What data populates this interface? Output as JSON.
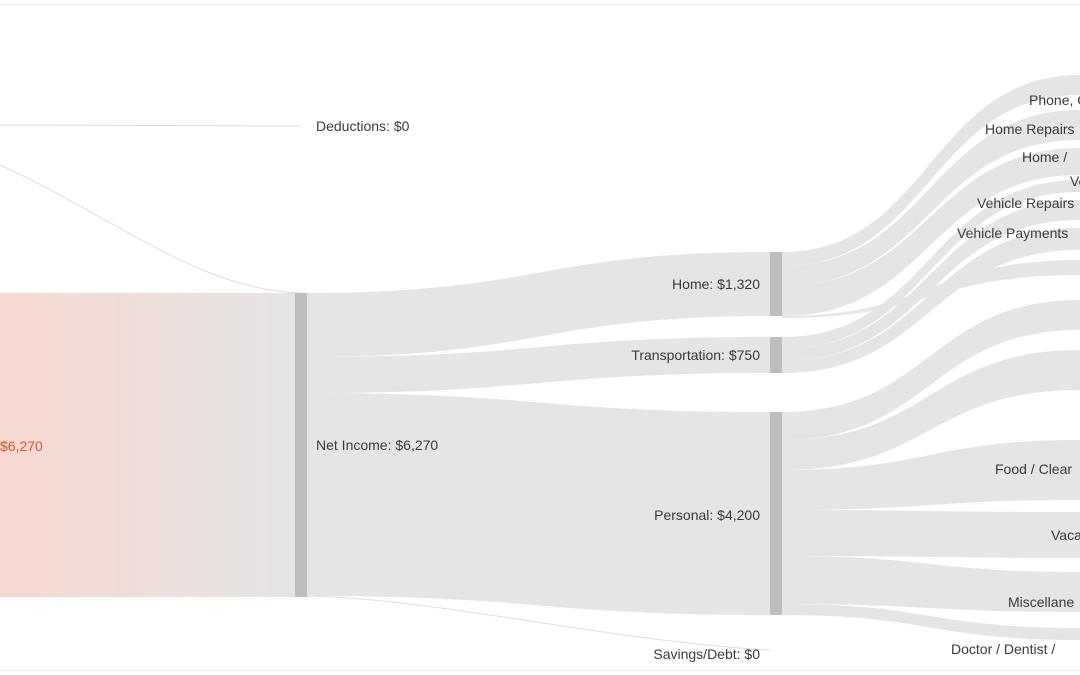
{
  "colors": {
    "link": "#e5e5e5",
    "node": "#bdbdbd",
    "income": "#d9542c",
    "income_fade": "#f6d9d0",
    "thin_link": "#dddddd",
    "label": "#3a3a3a"
  },
  "nodes": {
    "gross_income": {
      "label": "$6,270",
      "value": 6270
    },
    "deductions": {
      "label": "Deductions: $0",
      "value": 0
    },
    "net_income": {
      "label": "Net Income: $6,270",
      "value": 6270
    },
    "home": {
      "label": "Home: $1,320",
      "value": 1320
    },
    "transportation": {
      "label": "Transportation: $750",
      "value": 750
    },
    "personal": {
      "label": "Personal: $4,200",
      "value": 4200
    },
    "savings_debt": {
      "label": "Savings/Debt: $0",
      "value": 0
    }
  },
  "subcategories": [
    {
      "id": "phone",
      "label": "Phone, C"
    },
    {
      "id": "home-repairs",
      "label": "Home Repairs"
    },
    {
      "id": "home-other",
      "label": "Home /"
    },
    {
      "id": "vehicle-short",
      "label": "Ve"
    },
    {
      "id": "vehicle-repairs",
      "label": "Vehicle Repairs"
    },
    {
      "id": "vehicle-payments",
      "label": "Vehicle Payments"
    },
    {
      "id": "food-cleaning",
      "label": "Food / Clear"
    },
    {
      "id": "vacation",
      "label": "Vaca"
    },
    {
      "id": "miscellaneous",
      "label": "Miscellane"
    },
    {
      "id": "doctor-dentist",
      "label": "Doctor / Dentist /"
    }
  ]
}
